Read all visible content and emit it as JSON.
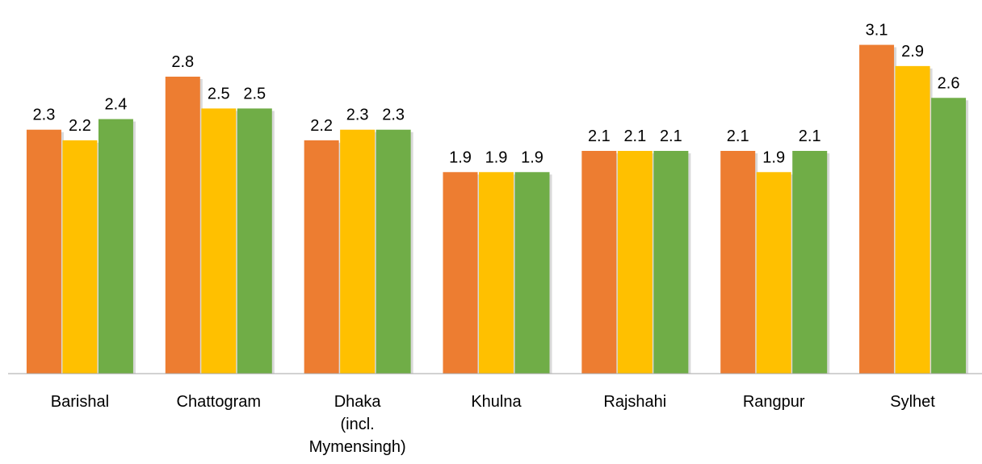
{
  "chart_data": {
    "type": "bar",
    "categories": [
      "Barishal",
      "Chattogram",
      "Dhaka\n(incl.\nMymensingh)",
      "Khulna",
      "Rajshahi",
      "Rangpur",
      "Sylhet"
    ],
    "series": [
      {
        "color": "#ed7d31",
        "values": [
          2.3,
          2.8,
          2.2,
          1.9,
          2.1,
          2.1,
          3.1
        ]
      },
      {
        "color": "#ffc000",
        "values": [
          2.2,
          2.5,
          2.3,
          1.9,
          2.1,
          1.9,
          2.9
        ]
      },
      {
        "color": "#70ad47",
        "values": [
          2.4,
          2.5,
          2.3,
          1.9,
          2.1,
          2.1,
          2.6
        ]
      }
    ],
    "ylim": [
      0,
      3.5
    ]
  }
}
